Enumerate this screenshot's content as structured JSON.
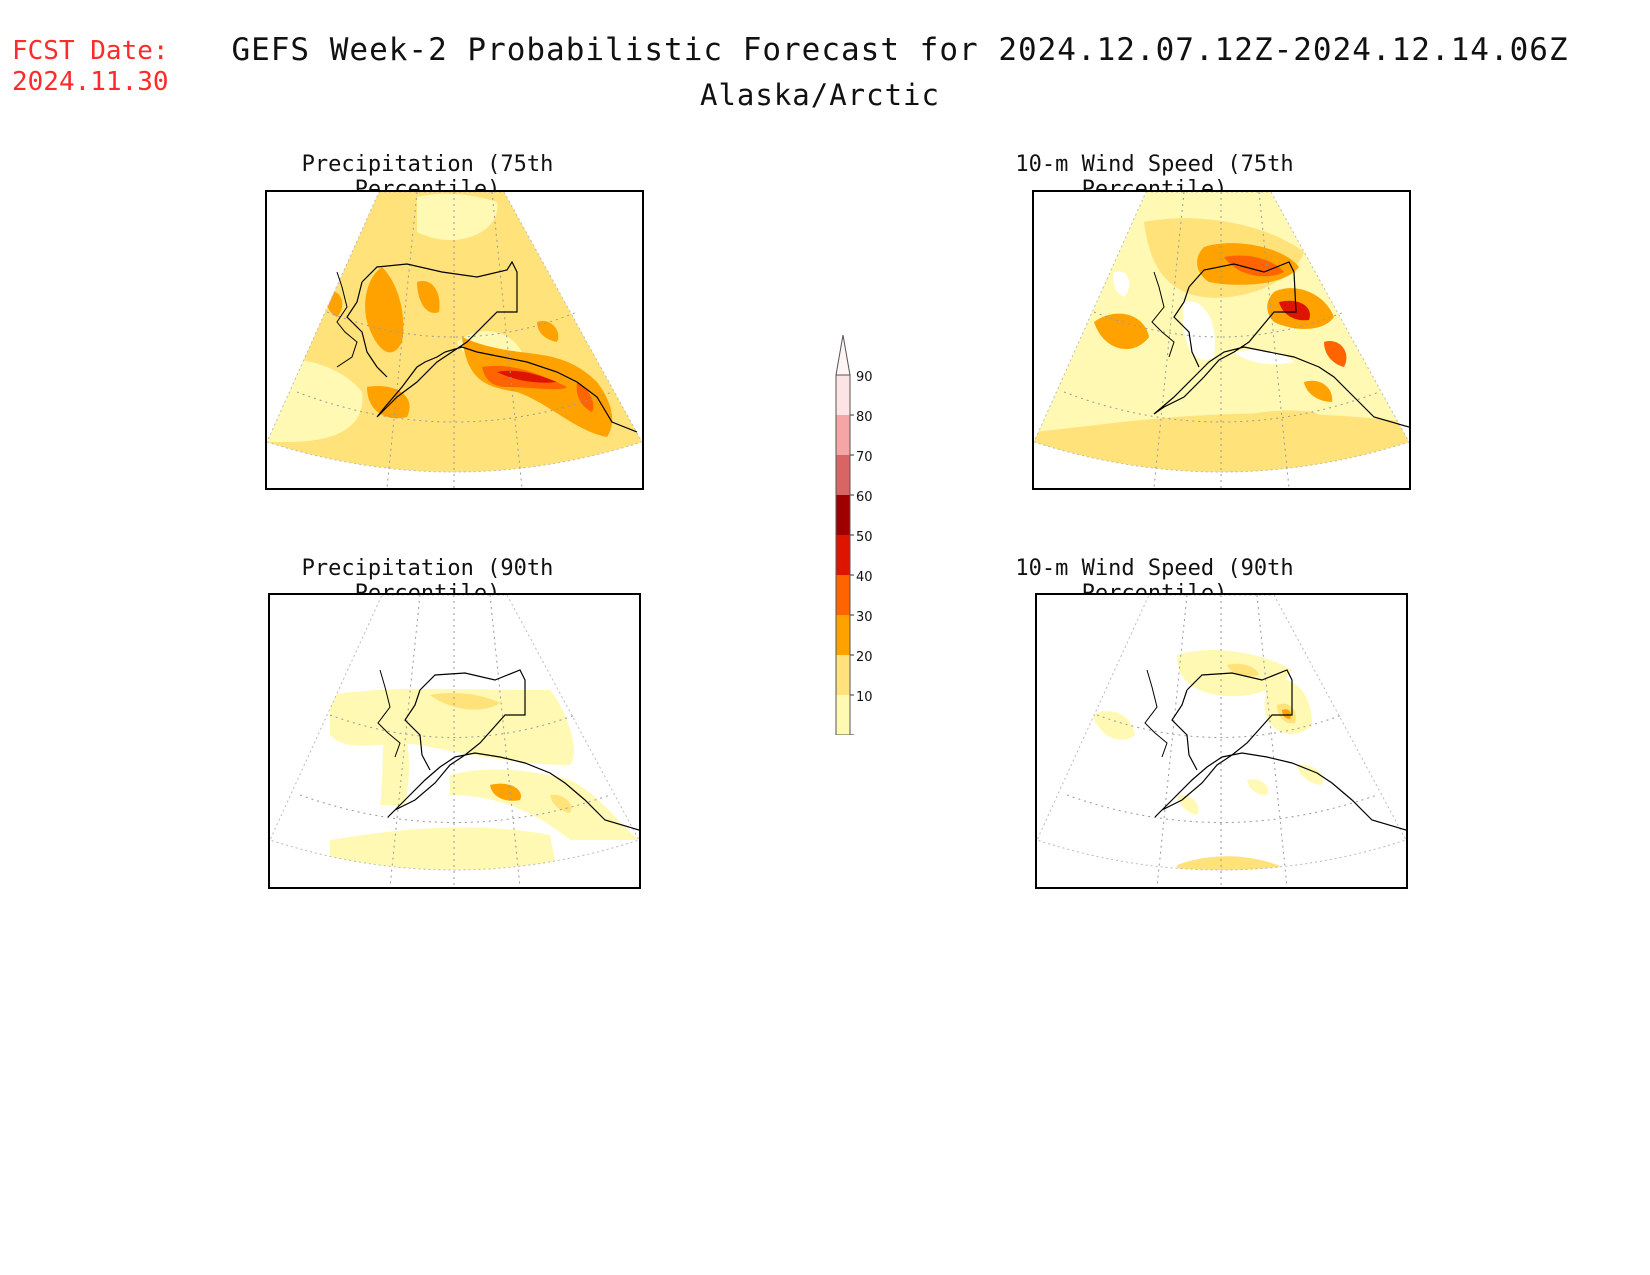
{
  "header": {
    "fcst_label": "FCST Date:",
    "fcst_date": "2024.11.30",
    "title": "GEFS Week-2 Probabilistic Forecast for 2024.12.07.12Z-2024.12.14.06Z",
    "region": "Alaska/Arctic"
  },
  "panels": [
    {
      "title": "Precipitation (75th Percentile)"
    },
    {
      "title": "10-m Wind Speed (75th Percentile)"
    },
    {
      "title": "Precipitation (90th Percentile)"
    },
    {
      "title": "10-m Wind Speed (90th Percentile)"
    }
  ],
  "colorbar": {
    "labels": [
      "90",
      "80",
      "70",
      "60",
      "50",
      "40",
      "30",
      "20",
      "10"
    ],
    "colors": [
      "#fde4e4",
      "#f4a5a5",
      "#d96464",
      "#9e0000",
      "#dd1500",
      "#ff6400",
      "#ffa200",
      "#ffe27a",
      "#fff9b4"
    ]
  },
  "palette": {
    "level_10": "#fff9b4",
    "level_20": "#ffe27a",
    "level_30": "#ffa200",
    "level_40": "#ff6400",
    "level_50": "#dd1500",
    "level_60": "#9e0000"
  }
}
